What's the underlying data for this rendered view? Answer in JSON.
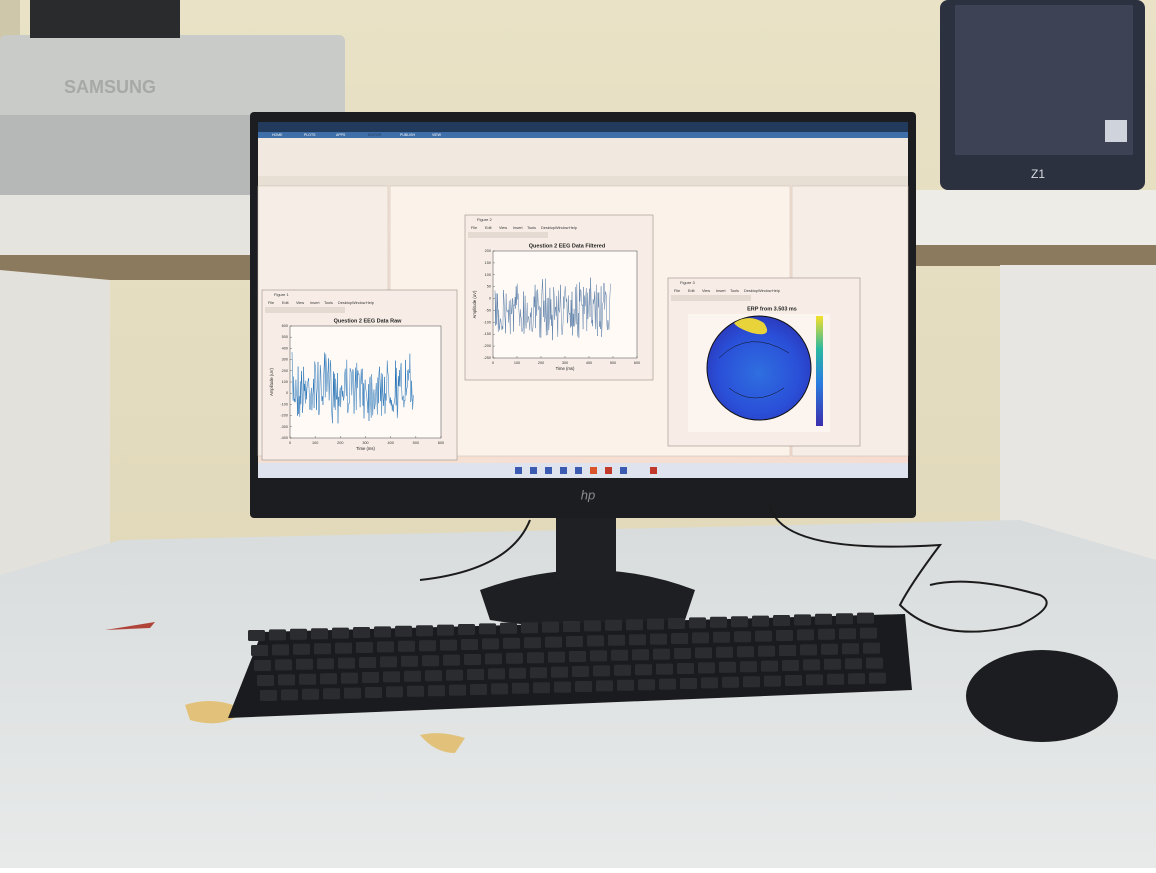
{
  "photo": {
    "printer_brand": "SAMSUNG",
    "monitor_brand": "hp",
    "tower_label": "Z1"
  },
  "screen": {
    "ribbon_tabs": [
      "HOME",
      "PLOTS",
      "APPS",
      "EDITOR",
      "PUBLISH",
      "VIEW"
    ],
    "figures": [
      {
        "window_title": "Figure 1",
        "menu": [
          "File",
          "Edit",
          "View",
          "Insert",
          "Tools",
          "Desktop",
          "Window",
          "Help"
        ],
        "title": "Question 2 EEG Data Raw",
        "xlabel": "Time (ms)",
        "ylabel": "Amplitude (uV)",
        "xlim": [
          0,
          600
        ],
        "xticks": [
          0,
          100,
          200,
          300,
          400,
          500,
          600
        ],
        "ylim": [
          -400,
          600
        ],
        "yticks": [
          600,
          500,
          400,
          300,
          200,
          100,
          0,
          -100,
          -200,
          -300,
          -400
        ]
      },
      {
        "window_title": "Figure 2",
        "menu": [
          "File",
          "Edit",
          "View",
          "Insert",
          "Tools",
          "Desktop",
          "Window",
          "Help"
        ],
        "title": "Question 2 EEG Data Filtered",
        "xlabel": "Time (ms)",
        "ylabel": "Amplitude (uV)",
        "xlim": [
          0,
          600
        ],
        "xticks": [
          0,
          100,
          200,
          300,
          400,
          500,
          600
        ],
        "ylim": [
          -250,
          200
        ],
        "yticks": [
          200,
          150,
          100,
          50,
          0,
          -50,
          -100,
          -150,
          -200,
          -250
        ]
      },
      {
        "window_title": "Figure 3",
        "menu": [
          "File",
          "Edit",
          "View",
          "Insert",
          "Tools",
          "Desktop",
          "Window",
          "Help"
        ],
        "title": "ERP from 3.503 ms"
      }
    ]
  }
}
